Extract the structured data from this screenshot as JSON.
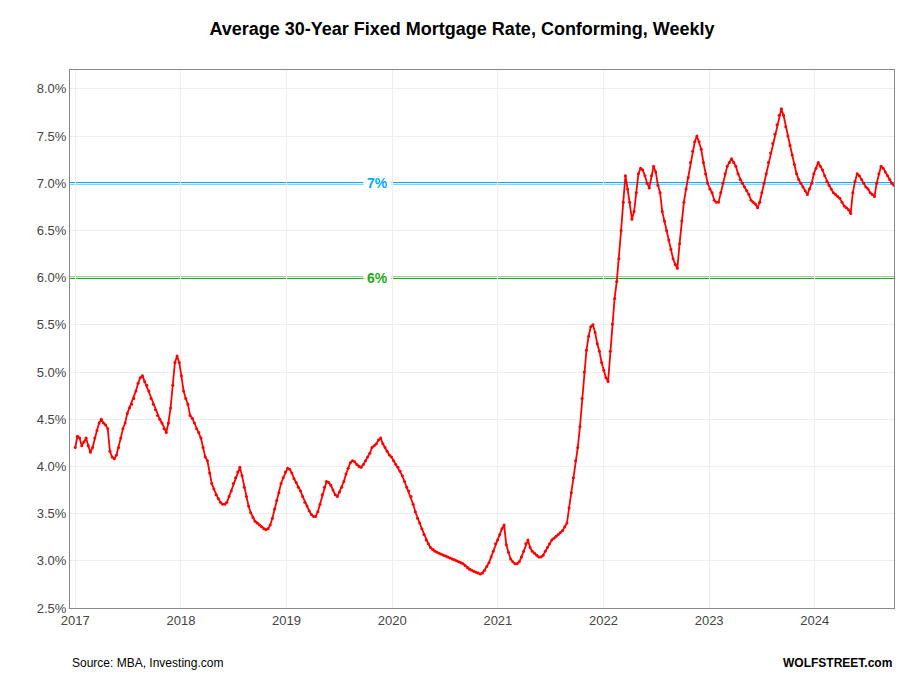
{
  "chart_data": {
    "type": "line",
    "title": "Average 30-Year Fixed Mortgage Rate, Conforming, Weekly",
    "source": "Source: MBA, Investing.com",
    "credit": "WOLFSTREET.com",
    "background_color": "#FFFFFF",
    "grid": true,
    "xlim": [
      2016.95,
      2024.75
    ],
    "xticks": [
      2017,
      2018,
      2019,
      2020,
      2021,
      2022,
      2023,
      2024
    ],
    "ylim": [
      2.5,
      8.2
    ],
    "yticks": [
      {
        "value": 2.5,
        "label": "2.5%"
      },
      {
        "value": 3.0,
        "label": "3.0%"
      },
      {
        "value": 3.5,
        "label": "3.5%"
      },
      {
        "value": 4.0,
        "label": "4.0%"
      },
      {
        "value": 4.5,
        "label": "4.5%"
      },
      {
        "value": 5.0,
        "label": "5.0%"
      },
      {
        "value": 5.5,
        "label": "5.5%"
      },
      {
        "value": 6.0,
        "label": "6.0%"
      },
      {
        "value": 6.5,
        "label": "6.5%"
      },
      {
        "value": 7.0,
        "label": "7.0%"
      },
      {
        "value": 7.5,
        "label": "7.5%"
      },
      {
        "value": 8.0,
        "label": "8.0%"
      }
    ],
    "reference_lines": [
      {
        "value": 7.0,
        "label": "7%",
        "color": "#00AAFF"
      },
      {
        "value": 6.0,
        "label": "6%",
        "color": "#22AA22"
      }
    ],
    "series": [
      {
        "color": "#FF0000",
        "marker": "circle",
        "x": [
          2017.0,
          2017.0205,
          2017.041,
          2017.0615,
          2017.082,
          2017.1025,
          2017.123,
          2017.1435,
          2017.164,
          2017.1845,
          2017.205,
          2017.2255,
          2017.246,
          2017.2665,
          2017.287,
          2017.3075,
          2017.328,
          2017.3485,
          2017.369,
          2017.3896,
          2017.4101,
          2017.4306,
          2017.4511,
          2017.4716,
          2017.4921,
          2017.5126,
          2017.5331,
          2017.5536,
          2017.5741,
          2017.5946,
          2017.6151,
          2017.6356,
          2017.6561,
          2017.6766,
          2017.6971,
          2017.7176,
          2017.7381,
          2017.7586,
          2017.7791,
          2017.7996,
          2017.8201,
          2017.8406,
          2017.8611,
          2017.8816,
          2017.9021,
          2017.9226,
          2017.9431,
          2017.9636,
          2017.9841,
          2018.0046,
          2018.0251,
          2018.0456,
          2018.0661,
          2018.0866,
          2018.1071,
          2018.1276,
          2018.1481,
          2018.1687,
          2018.1892,
          2018.2097,
          2018.2302,
          2018.2507,
          2018.2712,
          2018.2917,
          2018.3122,
          2018.3327,
          2018.3532,
          2018.3737,
          2018.3942,
          2018.4147,
          2018.4352,
          2018.4557,
          2018.4762,
          2018.4967,
          2018.5172,
          2018.5377,
          2018.5582,
          2018.5787,
          2018.5992,
          2018.6197,
          2018.6402,
          2018.6607,
          2018.6812,
          2018.7017,
          2018.7222,
          2018.7427,
          2018.7632,
          2018.7837,
          2018.8042,
          2018.8247,
          2018.8452,
          2018.8657,
          2018.8862,
          2018.9067,
          2018.9272,
          2018.9478,
          2018.9683,
          2018.9888,
          2019.0093,
          2019.0298,
          2019.0503,
          2019.0708,
          2019.0913,
          2019.1118,
          2019.1323,
          2019.1528,
          2019.1733,
          2019.1938,
          2019.2143,
          2019.2348,
          2019.2553,
          2019.2758,
          2019.2963,
          2019.3168,
          2019.3373,
          2019.3578,
          2019.3783,
          2019.3988,
          2019.4193,
          2019.4398,
          2019.4603,
          2019.4808,
          2019.5013,
          2019.5218,
          2019.5423,
          2019.5628,
          2019.5833,
          2019.6038,
          2019.6243,
          2019.6448,
          2019.6653,
          2019.6858,
          2019.7063,
          2019.7269,
          2019.7474,
          2019.7679,
          2019.7884,
          2019.8089,
          2019.8294,
          2019.8499,
          2019.8704,
          2019.8909,
          2019.9114,
          2019.9319,
          2019.9524,
          2019.9729,
          2019.9934,
          2020.0139,
          2020.0344,
          2020.0549,
          2020.0754,
          2020.0959,
          2020.1164,
          2020.1369,
          2020.1574,
          2020.1779,
          2020.1984,
          2020.2189,
          2020.2394,
          2020.2599,
          2020.2804,
          2020.3009,
          2020.3214,
          2020.3419,
          2020.3624,
          2020.3829,
          2020.4034,
          2020.4239,
          2020.4444,
          2020.4649,
          2020.4854,
          2020.506,
          2020.5265,
          2020.547,
          2020.5675,
          2020.588,
          2020.6085,
          2020.629,
          2020.6495,
          2020.67,
          2020.6905,
          2020.711,
          2020.7315,
          2020.752,
          2020.7725,
          2020.793,
          2020.8135,
          2020.834,
          2020.8545,
          2020.875,
          2020.8955,
          2020.916,
          2020.9365,
          2020.957,
          2020.9775,
          2020.998,
          2021.0185,
          2021.039,
          2021.0595,
          2021.08,
          2021.1005,
          2021.121,
          2021.1415,
          2021.162,
          2021.1825,
          2021.203,
          2021.2235,
          2021.244,
          2021.2646,
          2021.2851,
          2021.3056,
          2021.3261,
          2021.3466,
          2021.3671,
          2021.3876,
          2021.4081,
          2021.4286,
          2021.4491,
          2021.4696,
          2021.4901,
          2021.5106,
          2021.5311,
          2021.5516,
          2021.5721,
          2021.5926,
          2021.6131,
          2021.6336,
          2021.6541,
          2021.6746,
          2021.6951,
          2021.7156,
          2021.7361,
          2021.7566,
          2021.7771,
          2021.7976,
          2021.8181,
          2021.8386,
          2021.8591,
          2021.8796,
          2021.9001,
          2021.9206,
          2021.9411,
          2021.9616,
          2021.9821,
          2022.0026,
          2022.0231,
          2022.0437,
          2022.0642,
          2022.0847,
          2022.1052,
          2022.1257,
          2022.1462,
          2022.1667,
          2022.1872,
          2022.2077,
          2022.2282,
          2022.2487,
          2022.2692,
          2022.2897,
          2022.3102,
          2022.3307,
          2022.3512,
          2022.3717,
          2022.3922,
          2022.4127,
          2022.4332,
          2022.4537,
          2022.4742,
          2022.4947,
          2022.5152,
          2022.5357,
          2022.5562,
          2022.5767,
          2022.5972,
          2022.6177,
          2022.6382,
          2022.6587,
          2022.6792,
          2022.6997,
          2022.7202,
          2022.7407,
          2022.7612,
          2022.7817,
          2022.8022,
          2022.8228,
          2022.8433,
          2022.8638,
          2022.8843,
          2022.9048,
          2022.9253,
          2022.9458,
          2022.9663,
          2022.9868,
          2023.0073,
          2023.0278,
          2023.0483,
          2023.0688,
          2023.0893,
          2023.1098,
          2023.1303,
          2023.1508,
          2023.1713,
          2023.1918,
          2023.2123,
          2023.2328,
          2023.2533,
          2023.2738,
          2023.2943,
          2023.3148,
          2023.3353,
          2023.3558,
          2023.3763,
          2023.3968,
          2023.4173,
          2023.4378,
          2023.4583,
          2023.4788,
          2023.4993,
          2023.5198,
          2023.5403,
          2023.5608,
          2023.5813,
          2023.6019,
          2023.6224,
          2023.6429,
          2023.6634,
          2023.6839,
          2023.7044,
          2023.7249,
          2023.7454,
          2023.7659,
          2023.7864,
          2023.8069,
          2023.8274,
          2023.8479,
          2023.8684,
          2023.8889,
          2023.9094,
          2023.9299,
          2023.9504,
          2023.9709,
          2023.9914,
          2024.0119,
          2024.0324,
          2024.0529,
          2024.0734,
          2024.0939,
          2024.1144,
          2024.1349,
          2024.1554,
          2024.1759,
          2024.1964,
          2024.2169,
          2024.2374,
          2024.2579,
          2024.2784,
          2024.2989,
          2024.3194,
          2024.3399,
          2024.3604,
          2024.381,
          2024.4015,
          2024.422,
          2024.4425,
          2024.463,
          2024.4835,
          2024.504,
          2024.5245,
          2024.545,
          2024.5655,
          2024.586,
          2024.6065,
          2024.627,
          2024.6475,
          2024.668,
          2024.6885,
          2024.709,
          2024.7295,
          2024.75
        ],
        "values": [
          4.2,
          4.32,
          4.3,
          4.22,
          4.26,
          4.3,
          4.22,
          4.15,
          4.2,
          4.3,
          4.38,
          4.46,
          4.5,
          4.46,
          4.44,
          4.4,
          4.16,
          4.1,
          4.08,
          4.12,
          4.2,
          4.3,
          4.4,
          4.46,
          4.56,
          4.62,
          4.66,
          4.72,
          4.8,
          4.88,
          4.94,
          4.96,
          4.9,
          4.86,
          4.8,
          4.72,
          4.66,
          4.6,
          4.54,
          4.5,
          4.46,
          4.4,
          4.36,
          4.46,
          4.62,
          4.86,
          5.1,
          5.17,
          5.1,
          4.96,
          4.8,
          4.72,
          4.66,
          4.54,
          4.51,
          4.46,
          4.4,
          4.36,
          4.3,
          4.2,
          4.1,
          4.06,
          3.93,
          3.82,
          3.76,
          3.7,
          3.66,
          3.62,
          3.6,
          3.6,
          3.62,
          3.68,
          3.74,
          3.82,
          3.88,
          3.94,
          3.99,
          3.9,
          3.78,
          3.68,
          3.58,
          3.51,
          3.46,
          3.42,
          3.4,
          3.38,
          3.36,
          3.34,
          3.33,
          3.34,
          3.38,
          3.45,
          3.55,
          3.64,
          3.72,
          3.82,
          3.88,
          3.94,
          3.98,
          3.97,
          3.93,
          3.87,
          3.83,
          3.78,
          3.74,
          3.68,
          3.62,
          3.58,
          3.53,
          3.49,
          3.47,
          3.47,
          3.52,
          3.6,
          3.7,
          3.78,
          3.84,
          3.83,
          3.8,
          3.75,
          3.7,
          3.68,
          3.73,
          3.78,
          3.84,
          3.92,
          3.98,
          4.04,
          4.06,
          4.05,
          4.02,
          4.0,
          3.99,
          4.02,
          4.06,
          4.1,
          4.14,
          4.2,
          4.22,
          4.24,
          4.28,
          4.3,
          4.24,
          4.2,
          4.16,
          4.12,
          4.1,
          4.06,
          4.02,
          3.99,
          3.95,
          3.9,
          3.84,
          3.78,
          3.74,
          3.68,
          3.6,
          3.52,
          3.45,
          3.4,
          3.34,
          3.28,
          3.22,
          3.18,
          3.14,
          3.12,
          3.1,
          3.09,
          3.08,
          3.07,
          3.06,
          3.05,
          3.04,
          3.03,
          3.02,
          3.01,
          3.0,
          2.99,
          2.98,
          2.97,
          2.95,
          2.93,
          2.91,
          2.9,
          2.89,
          2.88,
          2.87,
          2.86,
          2.87,
          2.9,
          2.94,
          2.98,
          3.04,
          3.1,
          3.18,
          3.22,
          3.28,
          3.34,
          3.38,
          3.17,
          3.09,
          3.02,
          2.99,
          2.97,
          2.97,
          2.99,
          3.04,
          3.1,
          3.18,
          3.22,
          3.14,
          3.1,
          3.08,
          3.06,
          3.04,
          3.04,
          3.06,
          3.1,
          3.14,
          3.18,
          3.22,
          3.24,
          3.26,
          3.28,
          3.3,
          3.32,
          3.36,
          3.4,
          3.56,
          3.72,
          3.88,
          4.06,
          4.2,
          4.42,
          4.72,
          5.0,
          5.23,
          5.38,
          5.48,
          5.5,
          5.42,
          5.3,
          5.22,
          5.1,
          5.02,
          4.94,
          4.9,
          5.22,
          5.51,
          5.78,
          5.96,
          6.2,
          6.5,
          6.8,
          7.08,
          6.94,
          6.8,
          6.62,
          6.7,
          6.9,
          7.1,
          7.16,
          7.14,
          7.08,
          7.0,
          6.95,
          7.08,
          7.18,
          7.12,
          6.98,
          6.9,
          6.7,
          6.6,
          6.5,
          6.4,
          6.3,
          6.2,
          6.14,
          6.1,
          6.36,
          6.6,
          6.8,
          6.94,
          7.06,
          7.22,
          7.34,
          7.44,
          7.5,
          7.44,
          7.36,
          7.22,
          7.1,
          7.0,
          6.94,
          6.9,
          6.82,
          6.8,
          6.8,
          6.9,
          7.0,
          7.1,
          7.18,
          7.22,
          7.26,
          7.22,
          7.18,
          7.1,
          7.04,
          7.0,
          6.96,
          6.92,
          6.88,
          6.82,
          6.8,
          6.78,
          6.74,
          6.8,
          6.9,
          7.0,
          7.1,
          7.22,
          7.32,
          7.42,
          7.52,
          7.62,
          7.72,
          7.79,
          7.72,
          7.6,
          7.5,
          7.4,
          7.3,
          7.2,
          7.1,
          7.04,
          7.0,
          6.96,
          6.92,
          6.88,
          6.94,
          7.0,
          7.1,
          7.16,
          7.22,
          7.18,
          7.14,
          7.08,
          7.02,
          6.98,
          6.94,
          6.9,
          6.88,
          6.86,
          6.84,
          6.8,
          6.76,
          6.74,
          6.72,
          6.68,
          6.9,
          7.02,
          7.1,
          7.08,
          7.04,
          7.0,
          6.96,
          6.94,
          6.9,
          6.88,
          6.86,
          7.0,
          7.1,
          7.18,
          7.16,
          7.12,
          7.08,
          7.04,
          7.0,
          6.98
        ]
      }
    ]
  }
}
